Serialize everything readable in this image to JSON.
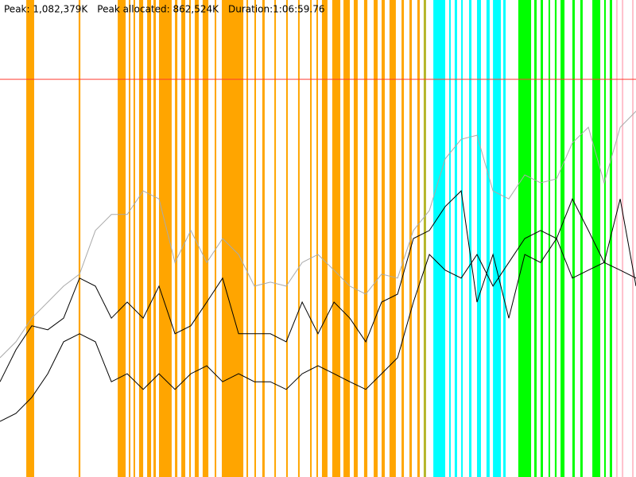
{
  "chart_data": {
    "type": "gc-timeline",
    "header": [
      "Peak: 1,082,379K",
      "Peak allocated: 862,524K",
      "Duration:1:06:59.76"
    ],
    "xlim": [
      0,
      4020
    ],
    "ylim": [
      0,
      1312000
    ],
    "limit_line": {
      "value": 1094000,
      "color": "#ff3b30"
    },
    "gc_events": [
      {
        "color": "#ffa500",
        "spans": [
          [
            166,
            216
          ],
          [
            497,
            508
          ],
          [
            744,
            794
          ],
          [
            814,
            824
          ],
          [
            844,
            854
          ],
          [
            879,
            905
          ],
          [
            930,
            955
          ],
          [
            970,
            985
          ],
          [
            1005,
            1085
          ],
          [
            1106,
            1121
          ],
          [
            1146,
            1171
          ],
          [
            1196,
            1206
          ],
          [
            1231,
            1256
          ],
          [
            1281,
            1317
          ],
          [
            1357,
            1367
          ],
          [
            1402,
            1538
          ],
          [
            1558,
            1568
          ],
          [
            1608,
            1618
          ],
          [
            1658,
            1673
          ],
          [
            1734,
            1744
          ],
          [
            1809,
            1819
          ],
          [
            1884,
            1894
          ],
          [
            1960,
            1970
          ],
          [
            2000,
            2010
          ],
          [
            2035,
            2070
          ],
          [
            2100,
            2151
          ],
          [
            2171,
            2211
          ],
          [
            2236,
            2261
          ],
          [
            2301,
            2322
          ],
          [
            2362,
            2387
          ],
          [
            2412,
            2432
          ],
          [
            2462,
            2502
          ],
          [
            2538,
            2553
          ],
          [
            2588,
            2603
          ],
          [
            2638,
            2653
          ]
        ]
      },
      {
        "color": "#b5b52a",
        "spans": [
          [
            2678,
            2693
          ]
        ]
      },
      {
        "color": "#00ffff",
        "spans": [
          [
            2739,
            2814
          ],
          [
            2839,
            2849
          ],
          [
            2874,
            2889
          ],
          [
            2915,
            2925
          ],
          [
            2965,
            2980
          ],
          [
            3015,
            3040
          ],
          [
            3075,
            3095
          ],
          [
            3116,
            3166
          ],
          [
            3181,
            3196
          ]
        ]
      },
      {
        "color": "#00ff00",
        "spans": [
          [
            3276,
            3357
          ],
          [
            3377,
            3392
          ],
          [
            3417,
            3432
          ],
          [
            3467,
            3477
          ],
          [
            3507,
            3518
          ],
          [
            3543,
            3568
          ],
          [
            3618,
            3633
          ],
          [
            3668,
            3683
          ],
          [
            3744,
            3794
          ],
          [
            3819,
            3829
          ],
          [
            3854,
            3869
          ]
        ]
      },
      {
        "color": "#ffc0cb",
        "spans": [
          [
            3894,
            3904
          ],
          [
            3930,
            3940
          ],
          [
            3995,
            4005
          ]
        ]
      }
    ],
    "x": [
      0,
      101,
      201,
      302,
      402,
      503,
      603,
      704,
      804,
      905,
      1005,
      1106,
      1206,
      1307,
      1407,
      1508,
      1608,
      1709,
      1809,
      1910,
      2010,
      2111,
      2211,
      2312,
      2412,
      2513,
      2613,
      2714,
      2814,
      2915,
      3015,
      3116,
      3216,
      3317,
      3417,
      3518,
      3618,
      3719,
      3819,
      3920,
      4020
    ],
    "series": [
      {
        "color": "#aaaaaa",
        "values": [
          328000,
          372000,
          437000,
          481000,
          525000,
          558000,
          678000,
          722000,
          722000,
          787000,
          765000,
          590000,
          678000,
          590000,
          656000,
          612000,
          525000,
          536000,
          525000,
          590000,
          612000,
          569000,
          525000,
          503000,
          558000,
          547000,
          678000,
          733000,
          875000,
          929000,
          940000,
          787000,
          765000,
          831000,
          809000,
          820000,
          919000,
          962000,
          809000,
          962000,
          1006000
        ]
      },
      {
        "color": "#000000",
        "values": [
          262000,
          350000,
          416000,
          405000,
          437000,
          547000,
          525000,
          437000,
          481000,
          437000,
          525000,
          394000,
          416000,
          481000,
          547000,
          394000,
          394000,
          394000,
          372000,
          481000,
          394000,
          481000,
          437000,
          372000,
          481000,
          503000,
          656000,
          678000,
          744000,
          787000,
          481000,
          612000,
          437000,
          612000,
          590000,
          656000,
          765000,
          678000,
          590000,
          765000,
          525000
        ]
      },
      {
        "color": "#000000",
        "values": [
          153000,
          175000,
          219000,
          284000,
          372000,
          394000,
          372000,
          262000,
          284000,
          241000,
          284000,
          241000,
          284000,
          306000,
          262000,
          284000,
          262000,
          262000,
          241000,
          284000,
          306000,
          284000,
          262000,
          241000,
          284000,
          328000,
          481000,
          612000,
          569000,
          547000,
          612000,
          525000,
          590000,
          656000,
          678000,
          656000,
          547000,
          569000,
          590000,
          569000,
          547000
        ]
      }
    ]
  }
}
